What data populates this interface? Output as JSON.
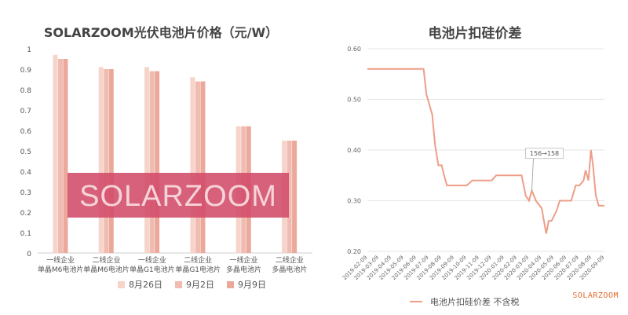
{
  "chart_data": [
    {
      "type": "bar",
      "title": "SOLARZOOM光伏电池片价格（元/W）",
      "categories": [
        [
          "一线企业",
          "单晶M6电池片"
        ],
        [
          "二线企业",
          "单晶M6电池片"
        ],
        [
          "一线企业",
          "单晶G1电池片"
        ],
        [
          "二线企业",
          "单晶G1电池片"
        ],
        [
          "一线企业",
          "多晶电池片"
        ],
        [
          "二线企业",
          "多晶电池片"
        ]
      ],
      "series": [
        {
          "name": "8月26日",
          "color": "#f6d4ca",
          "values": [
            0.97,
            0.91,
            0.91,
            0.86,
            0.62,
            0.55
          ]
        },
        {
          "name": "9月2日",
          "color": "#f0bbb0",
          "values": [
            0.95,
            0.9,
            0.89,
            0.84,
            0.62,
            0.55
          ]
        },
        {
          "name": "9月9日",
          "color": "#eba89b",
          "values": [
            0.95,
            0.9,
            0.89,
            0.84,
            0.62,
            0.55
          ]
        }
      ],
      "ylim": [
        0,
        1
      ],
      "yticks": [
        "0",
        "0.1",
        "0.2",
        "0.3",
        "0.4",
        "0.5",
        "0.6",
        "0.7",
        "0.8",
        "0.9",
        "1"
      ],
      "watermark": "SOLARZOOM",
      "grid": false,
      "legend_position": "bottom"
    },
    {
      "type": "line",
      "title": "电池片扣硅价差",
      "series": [
        {
          "name": "电池片扣硅价差 不含税",
          "color": "#ee9d88"
        }
      ],
      "x": [
        "2019-02-09",
        "2019-03-20",
        "2019-04-15",
        "2019-06-26",
        "2019-07-03",
        "2019-07-17",
        "2019-07-24",
        "2019-08-01",
        "2019-08-09",
        "2019-08-15",
        "2019-08-22",
        "2019-09-01",
        "2019-10-09",
        "2019-10-23",
        "2019-11-01",
        "2019-12-09",
        "2019-12-20",
        "2020-01-01",
        "2020-02-09",
        "2020-02-20",
        "2020-03-01",
        "2020-03-09",
        "2020-03-16",
        "2020-03-26",
        "2020-04-09",
        "2020-04-20",
        "2020-04-26",
        "2020-05-03",
        "2020-05-15",
        "2020-05-23",
        "2020-06-01",
        "2020-06-09",
        "2020-06-20",
        "2020-07-01",
        "2020-07-10",
        "2020-07-20",
        "2020-07-25",
        "2020-08-01",
        "2020-08-07",
        "2020-08-12",
        "2020-08-19",
        "2020-08-26",
        "2020-09-02",
        "2020-09-09"
      ],
      "values": [
        0.56,
        0.56,
        0.56,
        0.56,
        0.51,
        0.47,
        0.41,
        0.37,
        0.37,
        0.35,
        0.33,
        0.33,
        0.33,
        0.34,
        0.34,
        0.34,
        0.35,
        0.35,
        0.35,
        0.35,
        0.31,
        0.3,
        0.32,
        0.3,
        0.285,
        0.235,
        0.26,
        0.26,
        0.28,
        0.3,
        0.3,
        0.3,
        0.3,
        0.33,
        0.33,
        0.34,
        0.36,
        0.34,
        0.4,
        0.37,
        0.31,
        0.29,
        0.29,
        0.29
      ],
      "xticks": [
        "2019-02-09",
        "2019-03-09",
        "2019-04-09",
        "2019-05-09",
        "2019-06-09",
        "2019-07-09",
        "2019-08-09",
        "2019-09-09",
        "2019-10-09",
        "2019-11-09",
        "2019-12-09",
        "2020-01-09",
        "2020-02-09",
        "2020-03-09",
        "2020-04-09",
        "2020-05-09",
        "2020-06-09",
        "2020-07-09",
        "2020-08-09",
        "2020-09-09"
      ],
      "yticks": [
        "0.20",
        "0.30",
        "0.40",
        "0.50",
        "0.60"
      ],
      "ylim": [
        0.2,
        0.6
      ],
      "annotation": "156→158",
      "legend_position": "bottom",
      "grid": true
    }
  ],
  "brand": "SOLARZOOM"
}
